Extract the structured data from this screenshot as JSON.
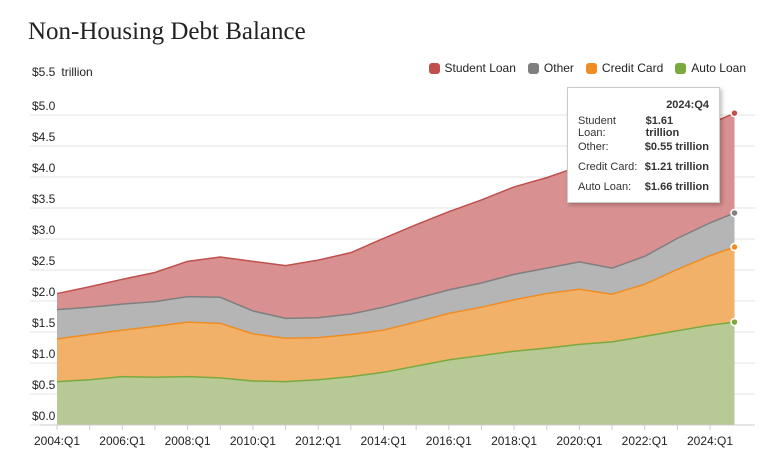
{
  "chart_data": {
    "type": "area",
    "stacked": true,
    "title": "Non-Housing Debt Balance",
    "ylabel": "trillion",
    "ylim": [
      0,
      5.5
    ],
    "yticks": [
      "$0.0",
      "$0.5",
      "$1.0",
      "$1.5",
      "$2.0",
      "$2.5",
      "$3.0",
      "$3.5",
      "$4.0",
      "$4.5",
      "$5.0",
      "$5.5"
    ],
    "xticks": [
      "2004:Q1",
      "2006:Q1",
      "2008:Q1",
      "2010:Q1",
      "2012:Q1",
      "2014:Q1",
      "2016:Q1",
      "2018:Q1",
      "2020:Q1",
      "2022:Q1",
      "2024:Q1"
    ],
    "x": [
      2004,
      2005,
      2006,
      2007,
      2008,
      2009,
      2010,
      2011,
      2012,
      2013,
      2014,
      2015,
      2016,
      2017,
      2018,
      2019,
      2020,
      2021,
      2022,
      2023,
      2024,
      2024.75
    ],
    "grid": true,
    "legend_position": "top-right",
    "series": [
      {
        "name": "Auto Loan",
        "color": "#7aaa3e",
        "fill": "#b7ca95",
        "values": [
          0.7,
          0.73,
          0.78,
          0.77,
          0.78,
          0.76,
          0.71,
          0.7,
          0.73,
          0.78,
          0.85,
          0.95,
          1.05,
          1.12,
          1.19,
          1.24,
          1.3,
          1.34,
          1.43,
          1.52,
          1.61,
          1.66
        ]
      },
      {
        "name": "Credit Card",
        "color": "#ef8d22",
        "fill": "#f1b169",
        "values": [
          0.69,
          0.73,
          0.75,
          0.82,
          0.88,
          0.88,
          0.76,
          0.7,
          0.68,
          0.68,
          0.68,
          0.71,
          0.75,
          0.78,
          0.83,
          0.88,
          0.89,
          0.77,
          0.84,
          0.99,
          1.12,
          1.21
        ]
      },
      {
        "name": "Other",
        "color": "#7f7f7f",
        "fill": "#b5b5b5",
        "values": [
          0.47,
          0.44,
          0.42,
          0.4,
          0.41,
          0.42,
          0.37,
          0.32,
          0.32,
          0.33,
          0.37,
          0.38,
          0.38,
          0.39,
          0.41,
          0.41,
          0.44,
          0.42,
          0.45,
          0.5,
          0.53,
          0.55
        ]
      },
      {
        "name": "Student Loan",
        "color": "#c0504d",
        "fill": "#d99090",
        "values": [
          0.26,
          0.33,
          0.4,
          0.47,
          0.57,
          0.65,
          0.8,
          0.85,
          0.93,
          0.99,
          1.11,
          1.19,
          1.26,
          1.34,
          1.41,
          1.46,
          1.54,
          1.58,
          1.59,
          1.6,
          1.6,
          1.61
        ]
      }
    ],
    "tooltip": {
      "period": "2024:Q4",
      "rows": [
        {
          "label": "Student Loan:",
          "value": "$1.61 trillion"
        },
        {
          "label": "Other:",
          "value": "$0.55 trillion"
        },
        {
          "label": "Credit Card:",
          "value": "$1.21 trillion"
        },
        {
          "label": "Auto Loan:",
          "value": "$1.66 trillion"
        }
      ]
    }
  },
  "unit_prefix": "$5.5",
  "unit_label": "trillion",
  "legend": [
    {
      "label": "Student Loan",
      "color": "#c0504d"
    },
    {
      "label": "Other",
      "color": "#7f7f7f"
    },
    {
      "label": "Credit Card",
      "color": "#ef8d22"
    },
    {
      "label": "Auto Loan",
      "color": "#7aaa3e"
    }
  ]
}
